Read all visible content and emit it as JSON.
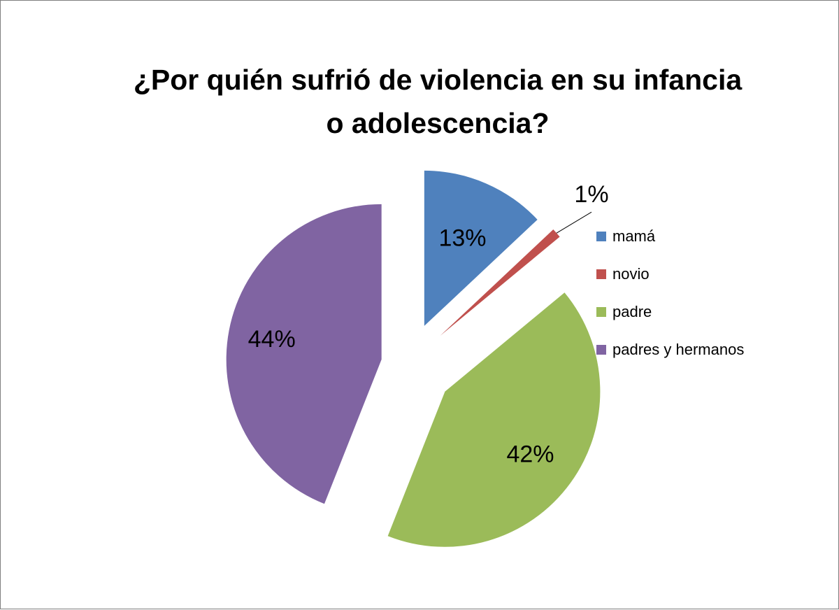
{
  "chart_data": {
    "type": "pie",
    "title": "¿Por quién sufrió de violencia en su infancia o adolescencia?",
    "title_lines": [
      "¿Por quién sufrió de violencia en su infancia",
      "o adolescencia?"
    ],
    "categories": [
      "mamá",
      "novio",
      "padre",
      "padres y hermanos"
    ],
    "values": [
      13,
      1,
      42,
      44
    ],
    "labels": [
      "13%",
      "1%",
      "42%",
      "44%"
    ],
    "colors": [
      "#4f81bd",
      "#c0504d",
      "#9bbb59",
      "#8064a2"
    ],
    "exploded": true,
    "legend_position": "right"
  }
}
